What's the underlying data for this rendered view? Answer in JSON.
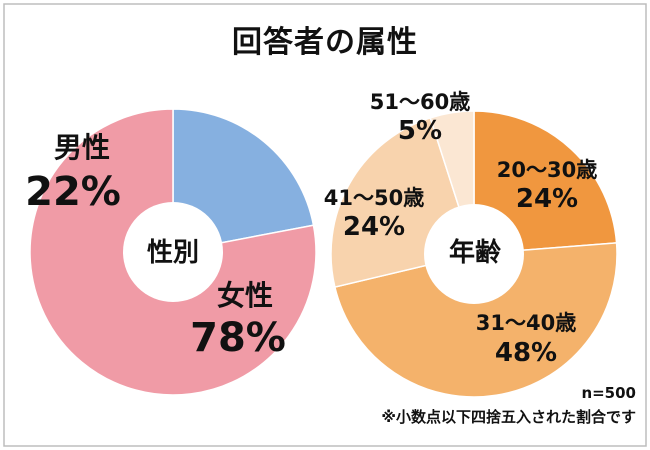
{
  "title": "回答者の属性",
  "chart_data": [
    {
      "type": "pie",
      "center_label": "性別",
      "slices": [
        {
          "name": "男性",
          "percent": 22,
          "value_label": "22%",
          "color": "#86b0e0"
        },
        {
          "name": "女性",
          "percent": 78,
          "value_label": "78%",
          "color": "#f09ba6"
        }
      ]
    },
    {
      "type": "pie",
      "center_label": "年齢",
      "slices": [
        {
          "name": "20～30歳",
          "percent": 24,
          "value_label": "24%",
          "color": "#f0973f"
        },
        {
          "name": "31～40歳",
          "percent": 48,
          "value_label": "48%",
          "color": "#f4b26b"
        },
        {
          "name": "41～50歳",
          "percent": 24,
          "value_label": "24%",
          "color": "#f8d3ad"
        },
        {
          "name": "51～60歳",
          "percent": 5,
          "value_label": "5%",
          "color": "#fbe7d3"
        }
      ]
    }
  ],
  "footer": {
    "sample": "n=500",
    "note": "※小数点以下四捨五入された割合です"
  }
}
